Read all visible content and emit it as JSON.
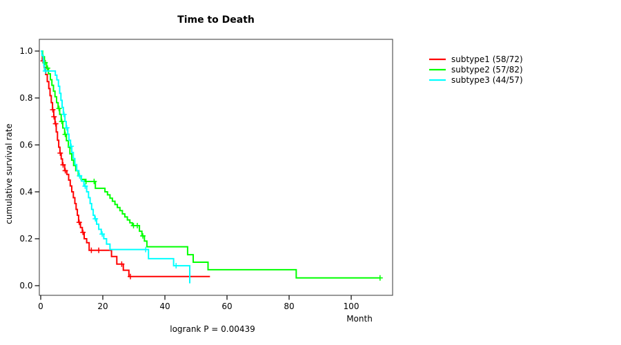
{
  "figure": {
    "title": "Time to Death",
    "annotation": "logrank P = 0.00439",
    "background": "#ffffff",
    "axis_color": "#555555"
  },
  "chart_data": {
    "type": "line",
    "subtype": "kaplan-meier-step",
    "title": "Time to Death",
    "xlabel": "Month",
    "ylabel": "cumulative survival rate",
    "annotation": "logrank P = 0.00439",
    "xlim": [
      0,
      113
    ],
    "ylim": [
      0,
      1.04
    ],
    "xticks": [
      0,
      20,
      40,
      60,
      80,
      100
    ],
    "yticks": [
      0.0,
      0.2,
      0.4,
      0.6,
      0.8,
      1.0
    ],
    "grid": false,
    "legend_position": "right-outside",
    "series": [
      {
        "name": "subtype1",
        "label": "subtype1 (58/72)",
        "color": "#FF0000",
        "n_total": 72,
        "n_events": 58,
        "end_time": 54.5,
        "end_censored": false,
        "steps": [
          [
            0,
            1.0
          ],
          [
            0.5,
            0.958
          ],
          [
            1.1,
            0.93
          ],
          [
            1.6,
            0.9
          ],
          [
            2.1,
            0.87
          ],
          [
            2.6,
            0.84
          ],
          [
            3.0,
            0.81
          ],
          [
            3.4,
            0.78
          ],
          [
            3.8,
            0.75
          ],
          [
            4.2,
            0.72
          ],
          [
            4.6,
            0.69
          ],
          [
            5.0,
            0.655
          ],
          [
            5.4,
            0.62
          ],
          [
            5.8,
            0.59
          ],
          [
            6.2,
            0.565
          ],
          [
            6.6,
            0.54
          ],
          [
            7.0,
            0.515
          ],
          [
            7.7,
            0.49
          ],
          [
            8.4,
            0.474
          ],
          [
            9.0,
            0.45
          ],
          [
            9.5,
            0.425
          ],
          [
            10.0,
            0.4
          ],
          [
            10.5,
            0.375
          ],
          [
            11.0,
            0.35
          ],
          [
            11.4,
            0.325
          ],
          [
            11.8,
            0.3
          ],
          [
            12.2,
            0.27
          ],
          [
            12.8,
            0.248
          ],
          [
            13.4,
            0.227
          ],
          [
            14.0,
            0.2
          ],
          [
            14.8,
            0.183
          ],
          [
            15.6,
            0.151
          ],
          [
            22.8,
            0.124
          ],
          [
            24.5,
            0.092
          ],
          [
            26.6,
            0.066
          ],
          [
            28.4,
            0.039
          ]
        ],
        "censors": [
          [
            0.8,
            0.958
          ],
          [
            3.9,
            0.75
          ],
          [
            4.3,
            0.72
          ],
          [
            4.8,
            0.69
          ],
          [
            6.3,
            0.565
          ],
          [
            7.2,
            0.515
          ],
          [
            7.9,
            0.49
          ],
          [
            12.4,
            0.27
          ],
          [
            13.6,
            0.227
          ],
          [
            16.3,
            0.151
          ],
          [
            18.7,
            0.151
          ],
          [
            26.1,
            0.092
          ],
          [
            28.9,
            0.039
          ]
        ]
      },
      {
        "name": "subtype2",
        "label": "subtype2 (57/82)",
        "color": "#00FF00",
        "n_total": 82,
        "n_events": 57,
        "end_time": 109.3,
        "end_censored": true,
        "steps": [
          [
            0,
            1.0
          ],
          [
            0.6,
            0.976
          ],
          [
            1.2,
            0.951
          ],
          [
            1.9,
            0.927
          ],
          [
            2.5,
            0.903
          ],
          [
            3.1,
            0.878
          ],
          [
            3.6,
            0.854
          ],
          [
            4.1,
            0.829
          ],
          [
            4.6,
            0.805
          ],
          [
            5.1,
            0.78
          ],
          [
            5.6,
            0.755
          ],
          [
            6.1,
            0.73
          ],
          [
            6.6,
            0.7
          ],
          [
            7.1,
            0.672
          ],
          [
            7.7,
            0.645
          ],
          [
            8.3,
            0.618
          ],
          [
            8.9,
            0.59
          ],
          [
            9.4,
            0.562
          ],
          [
            10.0,
            0.535
          ],
          [
            10.6,
            0.512
          ],
          [
            11.3,
            0.49
          ],
          [
            12.1,
            0.468
          ],
          [
            13.0,
            0.453
          ],
          [
            14.2,
            0.444
          ],
          [
            17.6,
            0.415
          ],
          [
            20.7,
            0.4
          ],
          [
            21.5,
            0.387
          ],
          [
            22.3,
            0.373
          ],
          [
            23.1,
            0.36
          ],
          [
            23.9,
            0.346
          ],
          [
            24.7,
            0.333
          ],
          [
            25.5,
            0.32
          ],
          [
            26.3,
            0.306
          ],
          [
            27.1,
            0.293
          ],
          [
            27.9,
            0.28
          ],
          [
            28.7,
            0.268
          ],
          [
            29.5,
            0.256
          ],
          [
            31.8,
            0.232
          ],
          [
            32.6,
            0.212
          ],
          [
            33.4,
            0.19
          ],
          [
            34.2,
            0.166
          ],
          [
            47.3,
            0.132
          ],
          [
            49.1,
            0.1
          ],
          [
            53.9,
            0.068
          ],
          [
            82.3,
            0.033
          ]
        ],
        "censors": [
          [
            1.4,
            0.951
          ],
          [
            2.2,
            0.927
          ],
          [
            5.9,
            0.755
          ],
          [
            6.8,
            0.7
          ],
          [
            7.9,
            0.645
          ],
          [
            14.6,
            0.444
          ],
          [
            17.2,
            0.444
          ],
          [
            29.9,
            0.256
          ],
          [
            31.1,
            0.256
          ],
          [
            32.9,
            0.212
          ]
        ]
      },
      {
        "name": "subtype3",
        "label": "subtype3 (44/57)",
        "color": "#00FFFF",
        "n_total": 57,
        "n_events": 44,
        "end_time": 48.0,
        "end_censored": false,
        "steps": [
          [
            0,
            1.0
          ],
          [
            0.4,
            0.982
          ],
          [
            0.8,
            0.96
          ],
          [
            1.0,
            0.938
          ],
          [
            1.2,
            0.915
          ],
          [
            4.7,
            0.897
          ],
          [
            5.2,
            0.877
          ],
          [
            5.7,
            0.85
          ],
          [
            6.1,
            0.82
          ],
          [
            6.5,
            0.79
          ],
          [
            6.9,
            0.76
          ],
          [
            7.3,
            0.73
          ],
          [
            7.8,
            0.7
          ],
          [
            8.2,
            0.673
          ],
          [
            8.7,
            0.646
          ],
          [
            9.1,
            0.62
          ],
          [
            9.6,
            0.594
          ],
          [
            10.0,
            0.568
          ],
          [
            10.5,
            0.542
          ],
          [
            11.0,
            0.516
          ],
          [
            11.6,
            0.49
          ],
          [
            12.3,
            0.468
          ],
          [
            13.1,
            0.446
          ],
          [
            13.9,
            0.424
          ],
          [
            14.8,
            0.4
          ],
          [
            15.4,
            0.375
          ],
          [
            15.9,
            0.35
          ],
          [
            16.4,
            0.325
          ],
          [
            16.9,
            0.3
          ],
          [
            17.4,
            0.285
          ],
          [
            18.0,
            0.262
          ],
          [
            18.7,
            0.24
          ],
          [
            19.5,
            0.22
          ],
          [
            20.3,
            0.2
          ],
          [
            21.2,
            0.177
          ],
          [
            22.3,
            0.154
          ],
          [
            34.7,
            0.115
          ],
          [
            42.8,
            0.085
          ],
          [
            48.0,
            0.01
          ]
        ],
        "censors": [
          [
            1.5,
            0.915
          ],
          [
            7.5,
            0.73
          ],
          [
            8.4,
            0.673
          ],
          [
            9.8,
            0.594
          ],
          [
            12.5,
            0.468
          ],
          [
            14.3,
            0.424
          ],
          [
            17.6,
            0.285
          ],
          [
            19.8,
            0.22
          ],
          [
            33.8,
            0.154
          ],
          [
            43.6,
            0.085
          ]
        ]
      }
    ]
  },
  "legend": {
    "items": [
      {
        "label": "subtype1 (58/72)",
        "color": "#FF0000"
      },
      {
        "label": "subtype2 (57/82)",
        "color": "#00FF00"
      },
      {
        "label": "subtype3 (44/57)",
        "color": "#00FFFF"
      }
    ]
  }
}
